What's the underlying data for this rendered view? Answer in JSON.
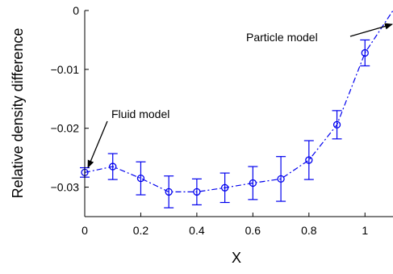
{
  "chart_data": {
    "type": "line",
    "xlabel": "X",
    "ylabel": "Relative density difference",
    "xlim": [
      0,
      1.1
    ],
    "ylim": [
      -0.035,
      0
    ],
    "xticks": [
      0,
      0.2,
      0.4,
      0.6,
      0.8,
      1
    ],
    "xtick_labels": [
      "0",
      "0.2",
      "0.4",
      "0.6",
      "0.8",
      "1"
    ],
    "yticks": [
      0,
      -0.01,
      -0.02,
      -0.03
    ],
    "ytick_labels": [
      "0",
      "−0.01",
      "−0.02",
      "−0.03"
    ],
    "grid": false,
    "series": [
      {
        "color": "#0000ee",
        "line_style": "dash-dot",
        "marker": "circle",
        "x": [
          0,
          0.1,
          0.2,
          0.3,
          0.4,
          0.5,
          0.6,
          0.7,
          0.8,
          0.9,
          1.0
        ],
        "y": [
          -0.0275,
          -0.0265,
          -0.0285,
          -0.0308,
          -0.0308,
          -0.0301,
          -0.0293,
          -0.0286,
          -0.0254,
          -0.0194,
          -0.0072
        ],
        "y_err": [
          0.0008,
          0.0022,
          0.0028,
          0.0027,
          0.0022,
          0.0025,
          0.0028,
          0.0038,
          0.0033,
          0.0024,
          0.0022
        ]
      }
    ],
    "curve_end": {
      "x": 1.1,
      "y": 0.0
    },
    "annotations": [
      {
        "text": "Fluid model",
        "arrow_to": {
          "x": 0,
          "y": -0.0275
        }
      },
      {
        "text": "Particle model",
        "arrow_to": {
          "x": 1.1,
          "y": 0.0
        }
      }
    ]
  }
}
